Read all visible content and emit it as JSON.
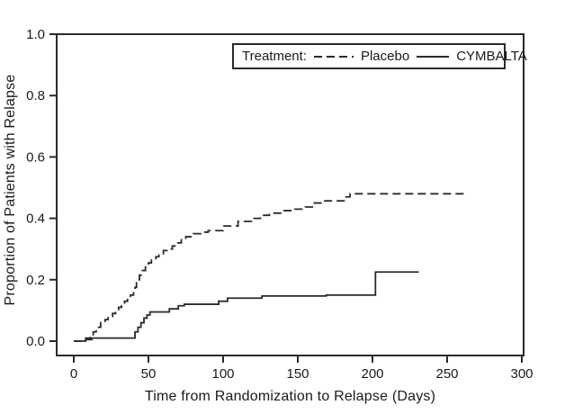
{
  "chart_data": {
    "type": "line",
    "subtype": "step",
    "title": "",
    "xlabel": "Time from Randomization to Relapse (Days)",
    "ylabel": "Proportion of Patients with Relapse",
    "xlim": [
      0,
      300
    ],
    "ylim": [
      0.0,
      1.0
    ],
    "xticks": [
      0,
      50,
      100,
      150,
      200,
      250,
      300
    ],
    "ytick_labels": [
      "0.0",
      "0.2",
      "0.4",
      "0.6",
      "0.8",
      "1.0"
    ],
    "grid": false,
    "legend": {
      "title": "Treatment:",
      "position": "top-right",
      "entries": [
        {
          "label": "Placebo",
          "line_style": "dashed"
        },
        {
          "label": "CYMBALTA",
          "line_style": "solid"
        }
      ]
    },
    "series": [
      {
        "name": "Placebo",
        "line_style": "dashed",
        "x": [
          0,
          8,
          11,
          13,
          15,
          18,
          21,
          23,
          26,
          28,
          30,
          32,
          34,
          36,
          38,
          40,
          41,
          42,
          43,
          44,
          46,
          48,
          50,
          52,
          55,
          57,
          60,
          63,
          66,
          69,
          72,
          75,
          80,
          85,
          90,
          100,
          110,
          119,
          125,
          131,
          140,
          148,
          155,
          161,
          167,
          181,
          185,
          264
        ],
        "y": [
          0,
          0.01,
          0.02,
          0.03,
          0.045,
          0.06,
          0.07,
          0.08,
          0.09,
          0.1,
          0.11,
          0.12,
          0.13,
          0.14,
          0.15,
          0.165,
          0.175,
          0.19,
          0.2,
          0.215,
          0.23,
          0.245,
          0.255,
          0.265,
          0.275,
          0.285,
          0.295,
          0.3,
          0.31,
          0.32,
          0.33,
          0.34,
          0.35,
          0.355,
          0.36,
          0.375,
          0.39,
          0.4,
          0.41,
          0.417,
          0.425,
          0.43,
          0.437,
          0.45,
          0.457,
          0.47,
          0.48,
          0.48
        ]
      },
      {
        "name": "CYMBALTA",
        "line_style": "solid",
        "x": [
          0,
          8,
          12,
          41,
          43,
          45,
          47,
          49,
          51,
          64,
          70,
          74,
          97,
          103,
          126,
          169,
          202,
          231
        ],
        "y": [
          0,
          0.005,
          0.01,
          0.03,
          0.045,
          0.06,
          0.075,
          0.085,
          0.095,
          0.105,
          0.115,
          0.12,
          0.13,
          0.14,
          0.147,
          0.15,
          0.225,
          0.225
        ]
      }
    ]
  },
  "colors": {
    "line": "#2a2a2a",
    "frame": "#2a2a2a",
    "text": "#1a1a1a",
    "background": "#ffffff"
  }
}
